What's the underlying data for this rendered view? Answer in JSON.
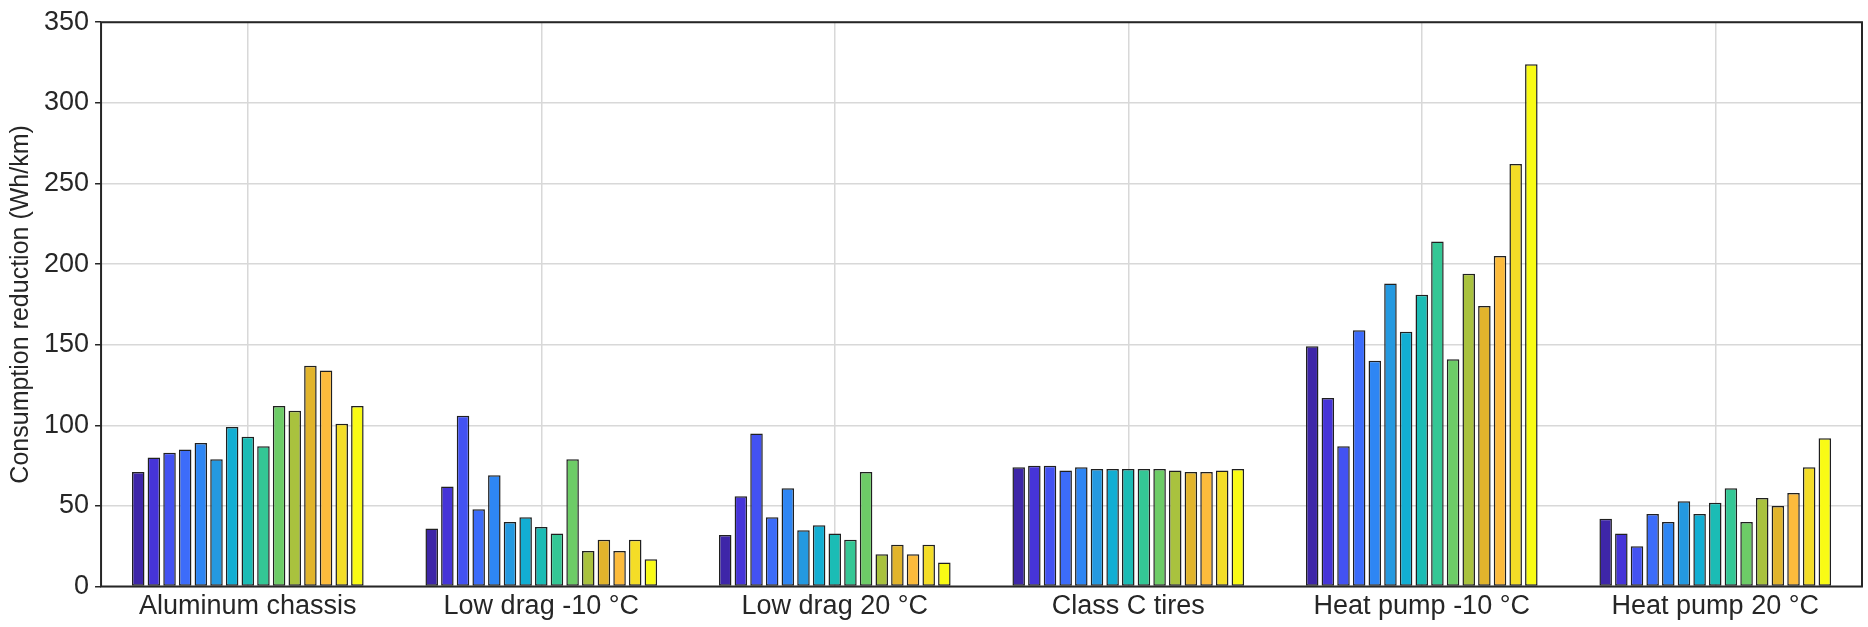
{
  "chart_data": {
    "type": "bar",
    "ylabel": "Consumption reduction (Wh/km)",
    "categories": [
      "Aluminum chassis",
      "Low drag -10 °C",
      "Low drag 20 °C",
      "Class C tires",
      "Heat pump -10 °C",
      "Heat pump 20 °C"
    ],
    "series": [
      {
        "color": "#3e26a8",
        "values": [
          71,
          36,
          32,
          74,
          149,
          42
        ]
      },
      {
        "color": "#4634d8",
        "values": [
          80,
          62,
          56,
          75,
          117,
          33
        ]
      },
      {
        "color": "#4352f2",
        "values": [
          83,
          106,
          95,
          75,
          87,
          25
        ]
      },
      {
        "color": "#3c6cfa",
        "values": [
          85,
          48,
          43,
          72,
          159,
          45
        ]
      },
      {
        "color": "#2e86f4",
        "values": [
          89,
          69,
          61,
          74,
          140,
          40
        ]
      },
      {
        "color": "#2499e0",
        "values": [
          79,
          40,
          35,
          73,
          188,
          53
        ]
      },
      {
        "color": "#12aed3",
        "values": [
          99,
          43,
          38,
          73,
          158,
          45
        ]
      },
      {
        "color": "#1bbcb5",
        "values": [
          93,
          37,
          33,
          73,
          181,
          52
        ]
      },
      {
        "color": "#34c795",
        "values": [
          87,
          33,
          29,
          73,
          214,
          61
        ]
      },
      {
        "color": "#6dcc67",
        "values": [
          112,
          79,
          71,
          73,
          141,
          40
        ]
      },
      {
        "color": "#a9c23e",
        "values": [
          109,
          22,
          20,
          72,
          194,
          55
        ]
      },
      {
        "color": "#e1b42c",
        "values": [
          137,
          29,
          26,
          71,
          174,
          50
        ]
      },
      {
        "color": "#fcbb3c",
        "values": [
          134,
          22,
          20,
          71,
          205,
          58
        ]
      },
      {
        "color": "#f4dd27",
        "values": [
          101,
          29,
          26,
          72,
          262,
          74
        ]
      },
      {
        "color": "#f9fb15",
        "values": [
          112,
          17,
          15,
          73,
          324,
          92
        ]
      }
    ],
    "ylim": [
      0,
      350
    ],
    "yticks": [
      0,
      50,
      100,
      150,
      200,
      250,
      300,
      350
    ],
    "grid": true
  }
}
